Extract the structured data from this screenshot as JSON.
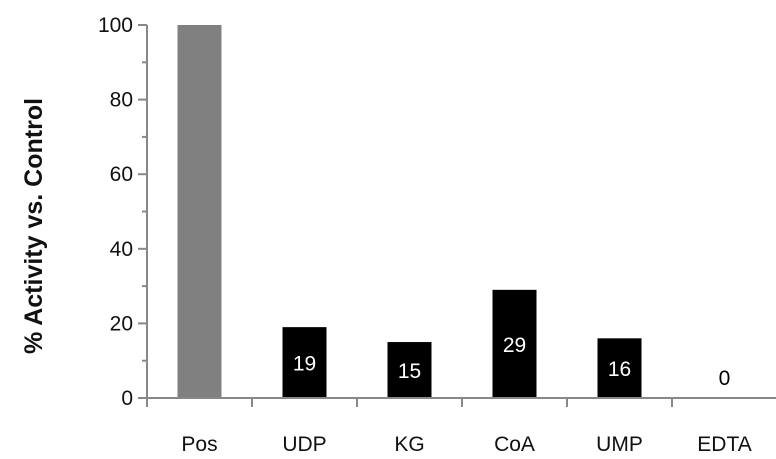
{
  "chart_data": {
    "type": "bar",
    "title": "",
    "xlabel": "",
    "ylabel": "% Activity vs. Control",
    "ylim": [
      0,
      100
    ],
    "yticks": [
      0,
      20,
      40,
      60,
      80,
      100
    ],
    "grid": false,
    "legend": "none",
    "categories": [
      "Pos",
      "UDP",
      "KG",
      "CoA",
      "UMP",
      "EDTA"
    ],
    "values": [
      100,
      19,
      15,
      29,
      16,
      0
    ],
    "data_labels": [
      "",
      "19",
      "15",
      "29",
      "16",
      "0"
    ],
    "colors": [
      "#808080",
      "#000000",
      "#000000",
      "#000000",
      "#000000",
      "#000000"
    ],
    "label_color_on_bar": "#ffffff",
    "label_color_off_bar": "#000000"
  }
}
